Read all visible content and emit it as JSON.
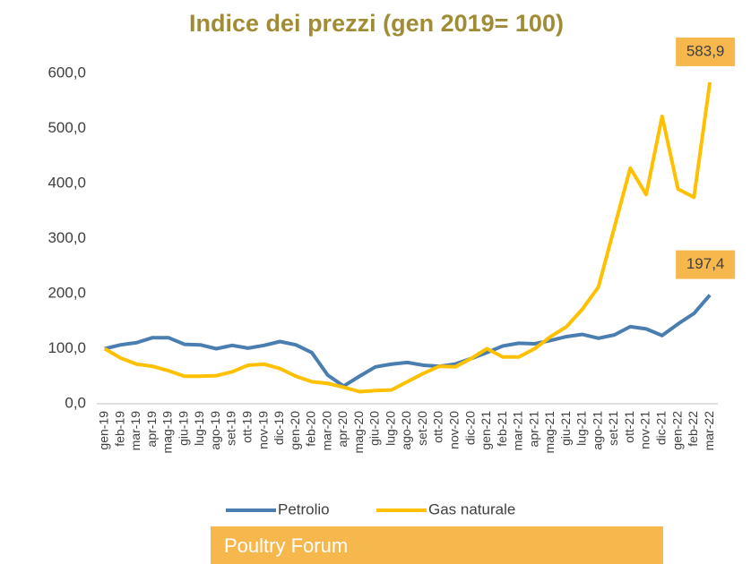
{
  "chart_data": {
    "type": "line",
    "title": "Indice dei prezzi (gen 2019= 100)",
    "categories": [
      "gen-19",
      "feb-19",
      "mar-19",
      "apr-19",
      "mag-19",
      "giu-19",
      "lug-19",
      "ago-19",
      "set-19",
      "ott-19",
      "nov-19",
      "dic-19",
      "gen-20",
      "feb-20",
      "mar-20",
      "apr-20",
      "mag-20",
      "giu-20",
      "lug-20",
      "ago-20",
      "set-20",
      "ott-20",
      "nov-20",
      "dic-20",
      "gen-21",
      "feb-21",
      "mar-21",
      "apr-21",
      "mag-21",
      "giu-21",
      "lug-21",
      "ago-21",
      "set-21",
      "ott-21",
      "nov-21",
      "dic-21",
      "gen-22",
      "feb-22",
      "mar-22"
    ],
    "series": [
      {
        "name": "Petrolio",
        "color": "#4a7db0",
        "values": [
          100,
          107,
          111,
          120,
          120,
          108,
          107,
          100,
          106,
          101,
          106,
          113,
          107,
          93,
          52,
          32,
          50,
          67,
          72,
          75,
          70,
          68,
          72,
          82,
          93,
          105,
          110,
          109,
          115,
          122,
          126,
          119,
          125,
          140,
          136,
          124,
          145,
          164,
          197.4
        ],
        "value_labels": [
          null,
          null,
          null,
          null,
          null,
          null,
          null,
          null,
          null,
          null,
          null,
          null,
          null,
          null,
          null,
          null,
          null,
          null,
          null,
          null,
          null,
          null,
          null,
          null,
          null,
          null,
          null,
          null,
          null,
          null,
          null,
          null,
          null,
          null,
          null,
          null,
          null,
          null,
          "197,4"
        ]
      },
      {
        "name": "Gas naturale",
        "color": "#ffc000",
        "values": [
          100,
          83,
          72,
          68,
          60,
          50,
          50,
          51,
          58,
          70,
          72,
          64,
          50,
          40,
          37,
          30,
          22,
          24,
          25,
          40,
          55,
          68,
          67,
          82,
          100,
          85,
          85,
          100,
          122,
          140,
          172,
          212,
          320,
          428,
          380,
          522,
          390,
          375,
          583.9
        ],
        "value_labels": [
          null,
          null,
          null,
          null,
          null,
          null,
          null,
          null,
          null,
          null,
          null,
          null,
          null,
          null,
          null,
          null,
          null,
          null,
          null,
          null,
          null,
          null,
          null,
          null,
          null,
          null,
          null,
          null,
          null,
          null,
          null,
          null,
          null,
          null,
          null,
          null,
          null,
          null,
          "583,9"
        ]
      }
    ],
    "ylim": [
      0,
      600
    ],
    "yticks": [
      {
        "value": 0,
        "label": "0,0"
      },
      {
        "value": 100,
        "label": "100,0"
      },
      {
        "value": 200,
        "label": "200,0"
      },
      {
        "value": 300,
        "label": "300,0"
      },
      {
        "value": 400,
        "label": "400,0"
      },
      {
        "value": 500,
        "label": "500,0"
      },
      {
        "value": 600,
        "label": "600,0"
      }
    ],
    "grid": false,
    "legend": "bottom",
    "footer": "Poultry Forum"
  }
}
